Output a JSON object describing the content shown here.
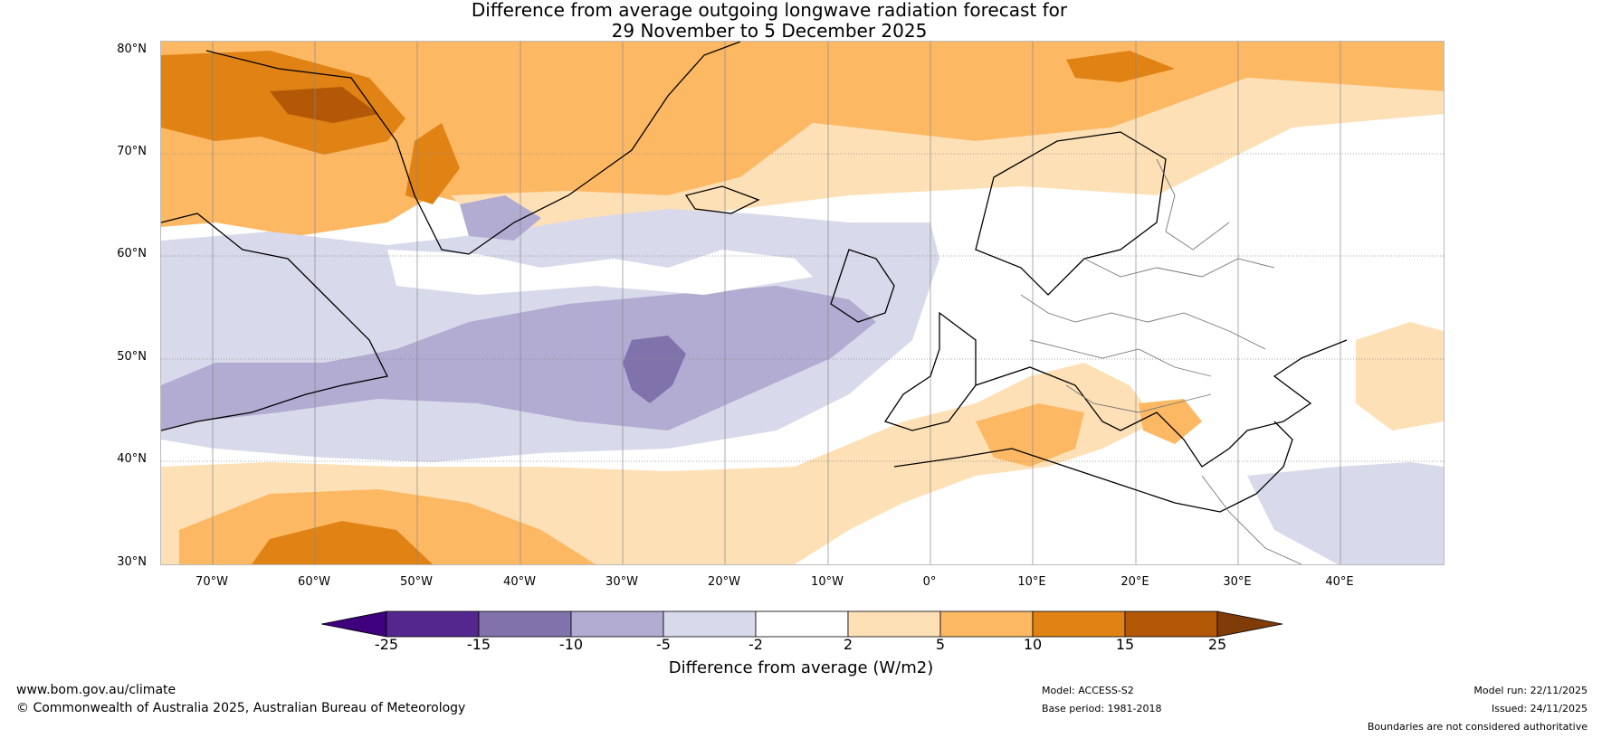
{
  "header": {
    "title_line1": "Difference from average outgoing longwave radiation forecast for",
    "title_line2": "29 November to 5 December 2025"
  },
  "map": {
    "lat_labels": [
      "80°N",
      "70°N",
      "60°N",
      "50°N",
      "40°N",
      "30°N"
    ],
    "lon_labels": [
      "70°W",
      "60°W",
      "50°W",
      "40°W",
      "30°W",
      "20°W",
      "10°W",
      "0°",
      "10°E",
      "20°E",
      "30°E",
      "40°E"
    ],
    "extent": {
      "lon_min": -75,
      "lon_max": 50,
      "lat_min": 30,
      "lat_max": 81
    }
  },
  "legend": {
    "ticks": [
      "-25",
      "-15",
      "-10",
      "-5",
      "-2",
      "2",
      "5",
      "10",
      "15",
      "25"
    ],
    "label": "Difference from average (W/m2)",
    "colors": [
      "#3f007d",
      "#54278f",
      "#8073ac",
      "#b2abd2",
      "#d8daeb",
      "#ffffff",
      "#fee0b6",
      "#fdb863",
      "#e08214",
      "#b35806",
      "#7f3b08"
    ]
  },
  "footer": {
    "website": "www.bom.gov.au/climate",
    "copyright": "© Commonwealth of Australia 2025, Australian Bureau of Meteorology",
    "model": "Model: ACCESS-S2",
    "base_period": "Base period: 1981-2018",
    "model_run": "Model run: 22/11/2025",
    "issued": "Issued: 24/11/2025",
    "disclaimer": "Boundaries are not considered authoritative"
  }
}
